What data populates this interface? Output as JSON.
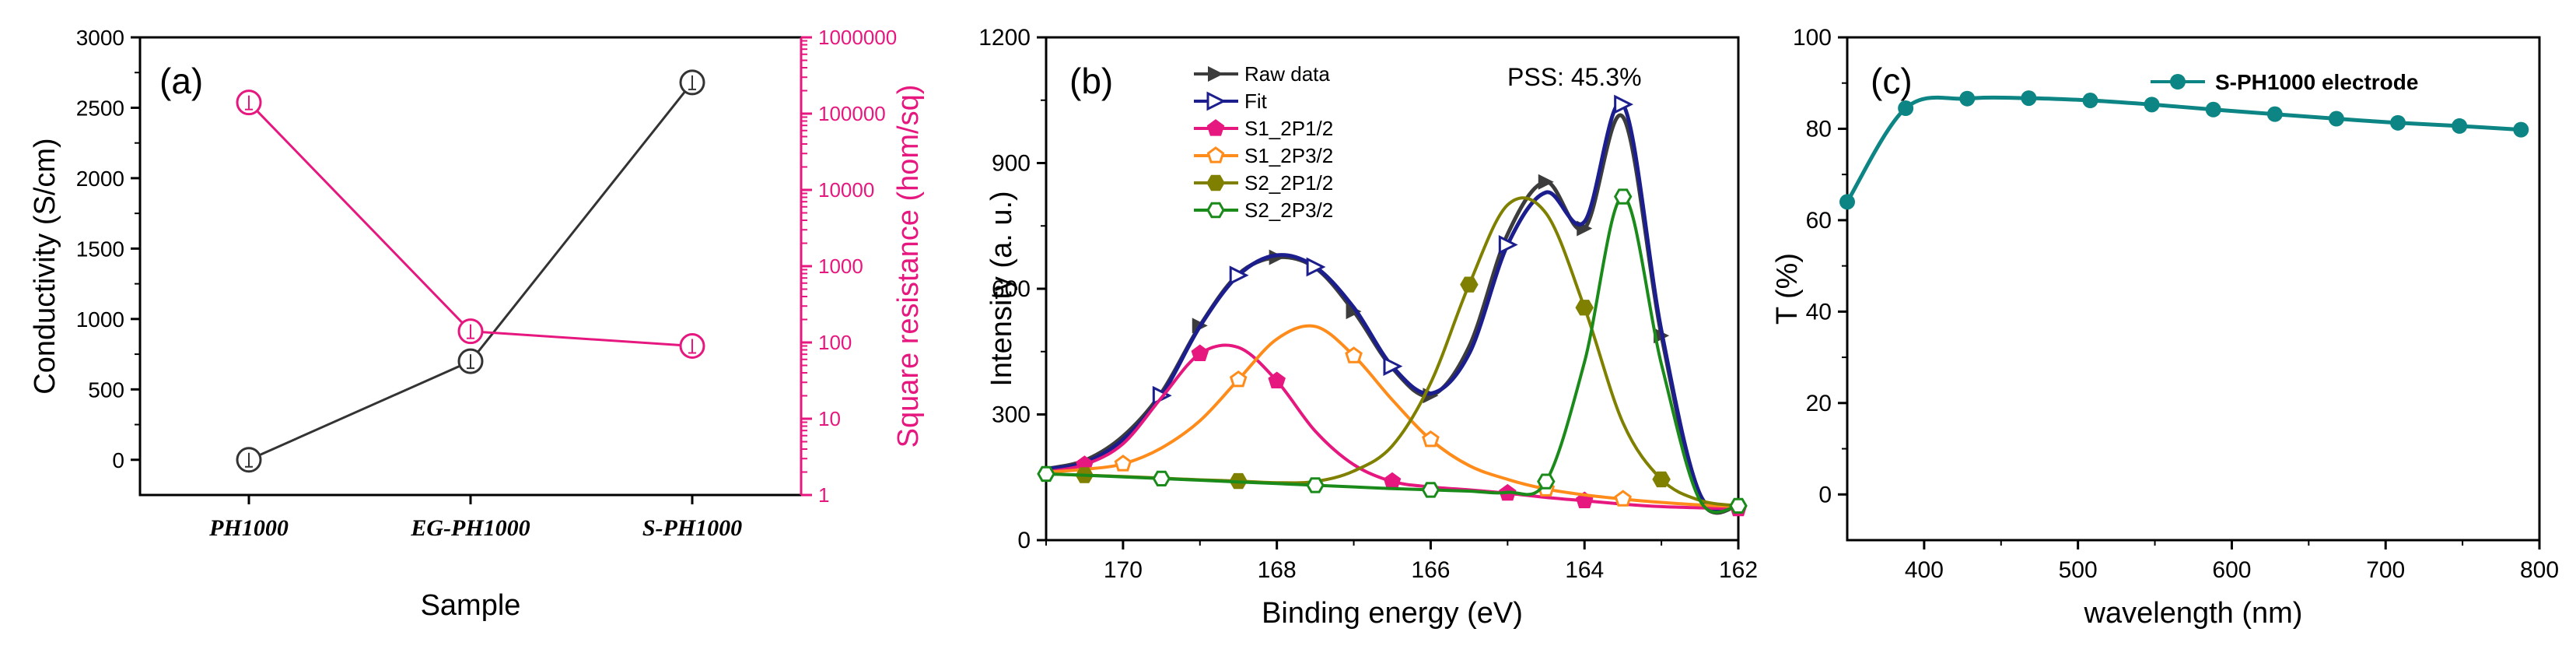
{
  "chart_data": [
    {
      "panel": "(a)",
      "type": "line",
      "xlabel": "Sample",
      "categories": [
        "PH1000",
        "EG-PH1000",
        "S-PH1000"
      ],
      "ylabel": "Conductivity (S/cm)",
      "ylim": [
        -250,
        3000
      ],
      "yticks": [
        "0",
        "500",
        "1000",
        "1500",
        "2000",
        "2500",
        "3000"
      ],
      "y2label": "Square resistance (hom/sq)",
      "y2lim": [
        1,
        1000000
      ],
      "y2scale": "log",
      "y2ticks": [
        "1",
        "10",
        "100",
        "1000",
        "10000",
        "100000",
        "1000000"
      ],
      "series": [
        {
          "name": "Conductivity",
          "axis": "left",
          "color": "#333333",
          "values": [
            0,
            700,
            2680
          ]
        },
        {
          "name": "Square resistance",
          "axis": "right",
          "color": "#e6177e",
          "values": [
            140000,
            140,
            90
          ]
        }
      ]
    },
    {
      "panel": "(b)",
      "type": "line",
      "xlabel": "Binding energy (eV)",
      "ylabel": "Intensity (a. u.)",
      "xlim": [
        171,
        162
      ],
      "ylim": [
        0,
        1200
      ],
      "xticks": [
        "170",
        "168",
        "166",
        "164",
        "162"
      ],
      "yticks": [
        "0",
        "300",
        "600",
        "900",
        "1200"
      ],
      "annotation": "PSS: 45.3%",
      "x": [
        171,
        170.5,
        170,
        169.5,
        169,
        168.5,
        168,
        167.5,
        167,
        166.5,
        166,
        165.5,
        165,
        164.5,
        164,
        163.5,
        163,
        162.5,
        162
      ],
      "series": [
        {
          "name": "Raw data",
          "color": "#3c3c3c",
          "values": [
            170,
            190,
            248,
            352,
            512,
            635,
            675,
            650,
            546,
            411,
            345,
            462,
            730,
            855,
            744,
            1010,
            488,
            100,
            82
          ]
        },
        {
          "name": "Fit",
          "color": "#1b1e8c",
          "values": [
            170,
            185,
            240,
            345,
            510,
            632,
            680,
            652,
            555,
            415,
            350,
            445,
            705,
            830,
            760,
            1040,
            500,
            110,
            85
          ]
        },
        {
          "name": "S1_2P1/2",
          "color": "#e6177e",
          "values": [
            163,
            180,
            230,
            340,
            445,
            460,
            380,
            260,
            180,
            140,
            127,
            120,
            112,
            102,
            94,
            86,
            80,
            77,
            75
          ]
        },
        {
          "name": "S1_2P3/2",
          "color": "#ff8c1a",
          "values": [
            162,
            169,
            182,
            220,
            285,
            383,
            480,
            510,
            440,
            335,
            240,
            178,
            145,
            122,
            108,
            98,
            90,
            84,
            80
          ]
        },
        {
          "name": "S2_2P1/2",
          "color": "#808000",
          "values": [
            158,
            155,
            152,
            148,
            144,
            141,
            137,
            140,
            165,
            225,
            375,
            610,
            800,
            780,
            555,
            280,
            145,
            95,
            82
          ]
        },
        {
          "name": "S2_2P3/2",
          "color": "#1a8a1a",
          "values": [
            158,
            155,
            151,
            147,
            143,
            139,
            135,
            131,
            127,
            123,
            120,
            117,
            114,
            140,
            425,
            820,
            420,
            95,
            82
          ]
        }
      ]
    },
    {
      "panel": "(c)",
      "type": "line",
      "xlabel": "wavelength (nm)",
      "ylabel": "T (%)",
      "xlim": [
        350,
        800
      ],
      "ylim": [
        -10,
        100
      ],
      "xticks": [
        "400",
        "500",
        "600",
        "700",
        "800"
      ],
      "yticks": [
        "0",
        "20",
        "40",
        "60",
        "80",
        "100"
      ],
      "series": [
        {
          "name": "S-PH1000 electrode",
          "color": "#0d8585",
          "x": [
            350,
            388,
            428,
            468,
            508,
            548,
            588,
            628,
            668,
            708,
            748,
            788
          ],
          "values": [
            64,
            84.5,
            86.6,
            86.7,
            86.2,
            85.3,
            84.2,
            83.2,
            82.2,
            81.3,
            80.6,
            79.8
          ]
        }
      ]
    }
  ]
}
